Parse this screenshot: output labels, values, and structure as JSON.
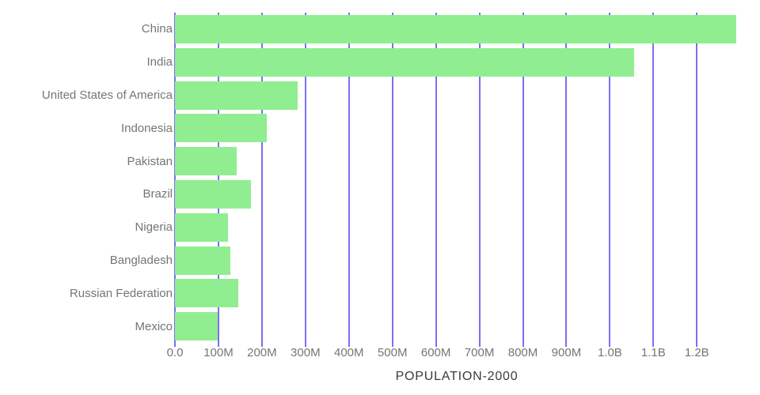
{
  "chart_data": {
    "type": "bar",
    "orientation": "horizontal",
    "title": "POPULATION-2000",
    "categories": [
      "China",
      "India",
      "United States of America",
      "Indonesia",
      "Pakistan",
      "Brazil",
      "Nigeria",
      "Bangladesh",
      "Russian Federation",
      "Mexico"
    ],
    "values_millions": [
      1290.6,
      1056.6,
      281.7,
      211.5,
      142.3,
      174.8,
      122.3,
      127.7,
      146.4,
      98.9
    ],
    "x_ticks": [
      {
        "value": 0,
        "label": "0.0"
      },
      {
        "value": 100,
        "label": "100M"
      },
      {
        "value": 200,
        "label": "200M"
      },
      {
        "value": 300,
        "label": "300M"
      },
      {
        "value": 400,
        "label": "400M"
      },
      {
        "value": 500,
        "label": "500M"
      },
      {
        "value": 600,
        "label": "600M"
      },
      {
        "value": 700,
        "label": "700M"
      },
      {
        "value": 800,
        "label": "800M"
      },
      {
        "value": 900,
        "label": "900M"
      },
      {
        "value": 1000,
        "label": "1.0B"
      },
      {
        "value": 1100,
        "label": "1.1B"
      },
      {
        "value": 1200,
        "label": "1.2B"
      }
    ],
    "x_axis_max_millions": 1296,
    "xlabel": "",
    "ylabel": "",
    "legend": "none",
    "grid": "vertical-only",
    "colors": {
      "bar": "#90ee90",
      "gridline": "#7b70f4",
      "axis_label": "#757575",
      "title": "#3a3a3a",
      "background": "#ffffff"
    }
  }
}
